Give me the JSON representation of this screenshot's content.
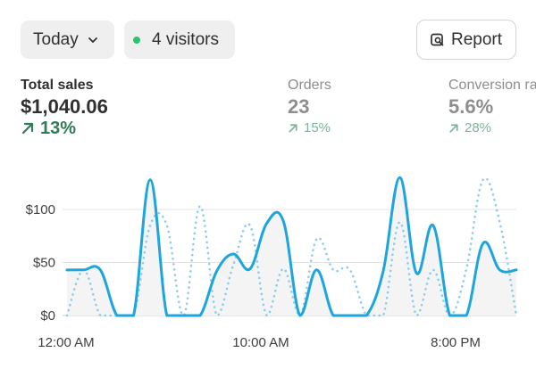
{
  "controls": {
    "date_range": "Today",
    "visitors": "4 visitors",
    "report_label": "Report"
  },
  "metrics": [
    {
      "label": "Total sales",
      "value": "$1,040.06",
      "delta": "13%"
    },
    {
      "label": "Orders",
      "value": "23",
      "delta": "15%"
    },
    {
      "label": "Conversion rate",
      "value": "5.6%",
      "delta": "28%"
    }
  ],
  "colors": {
    "accent": "#1ea6dc",
    "positive": "#2f7d55",
    "positive_muted": "#7bb597",
    "live_dot": "#29c46f"
  },
  "chart_data": {
    "type": "line",
    "title": "",
    "xlabel": "",
    "ylabel": "",
    "x_ticks": [
      "12:00 AM",
      "10:00 AM",
      "8:00 PM"
    ],
    "y_ticks": [
      "$0",
      "$50",
      "$100"
    ],
    "ylim": [
      0,
      130
    ],
    "grid": true,
    "series": [
      {
        "style": "solid",
        "values": [
          43,
          43,
          43,
          0,
          0,
          128,
          0,
          0,
          0,
          42,
          58,
          44,
          87,
          89,
          0,
          43,
          0,
          0,
          0,
          42,
          130,
          40,
          85,
          0,
          0,
          68,
          43,
          43
        ]
      },
      {
        "style": "dotted",
        "values": [
          0,
          43,
          0,
          0,
          0,
          85,
          85,
          0,
          103,
          0,
          48,
          85,
          0,
          44,
          0,
          72,
          43,
          43,
          0,
          0,
          88,
          0,
          43,
          0,
          44,
          128,
          88,
          0
        ]
      }
    ]
  }
}
